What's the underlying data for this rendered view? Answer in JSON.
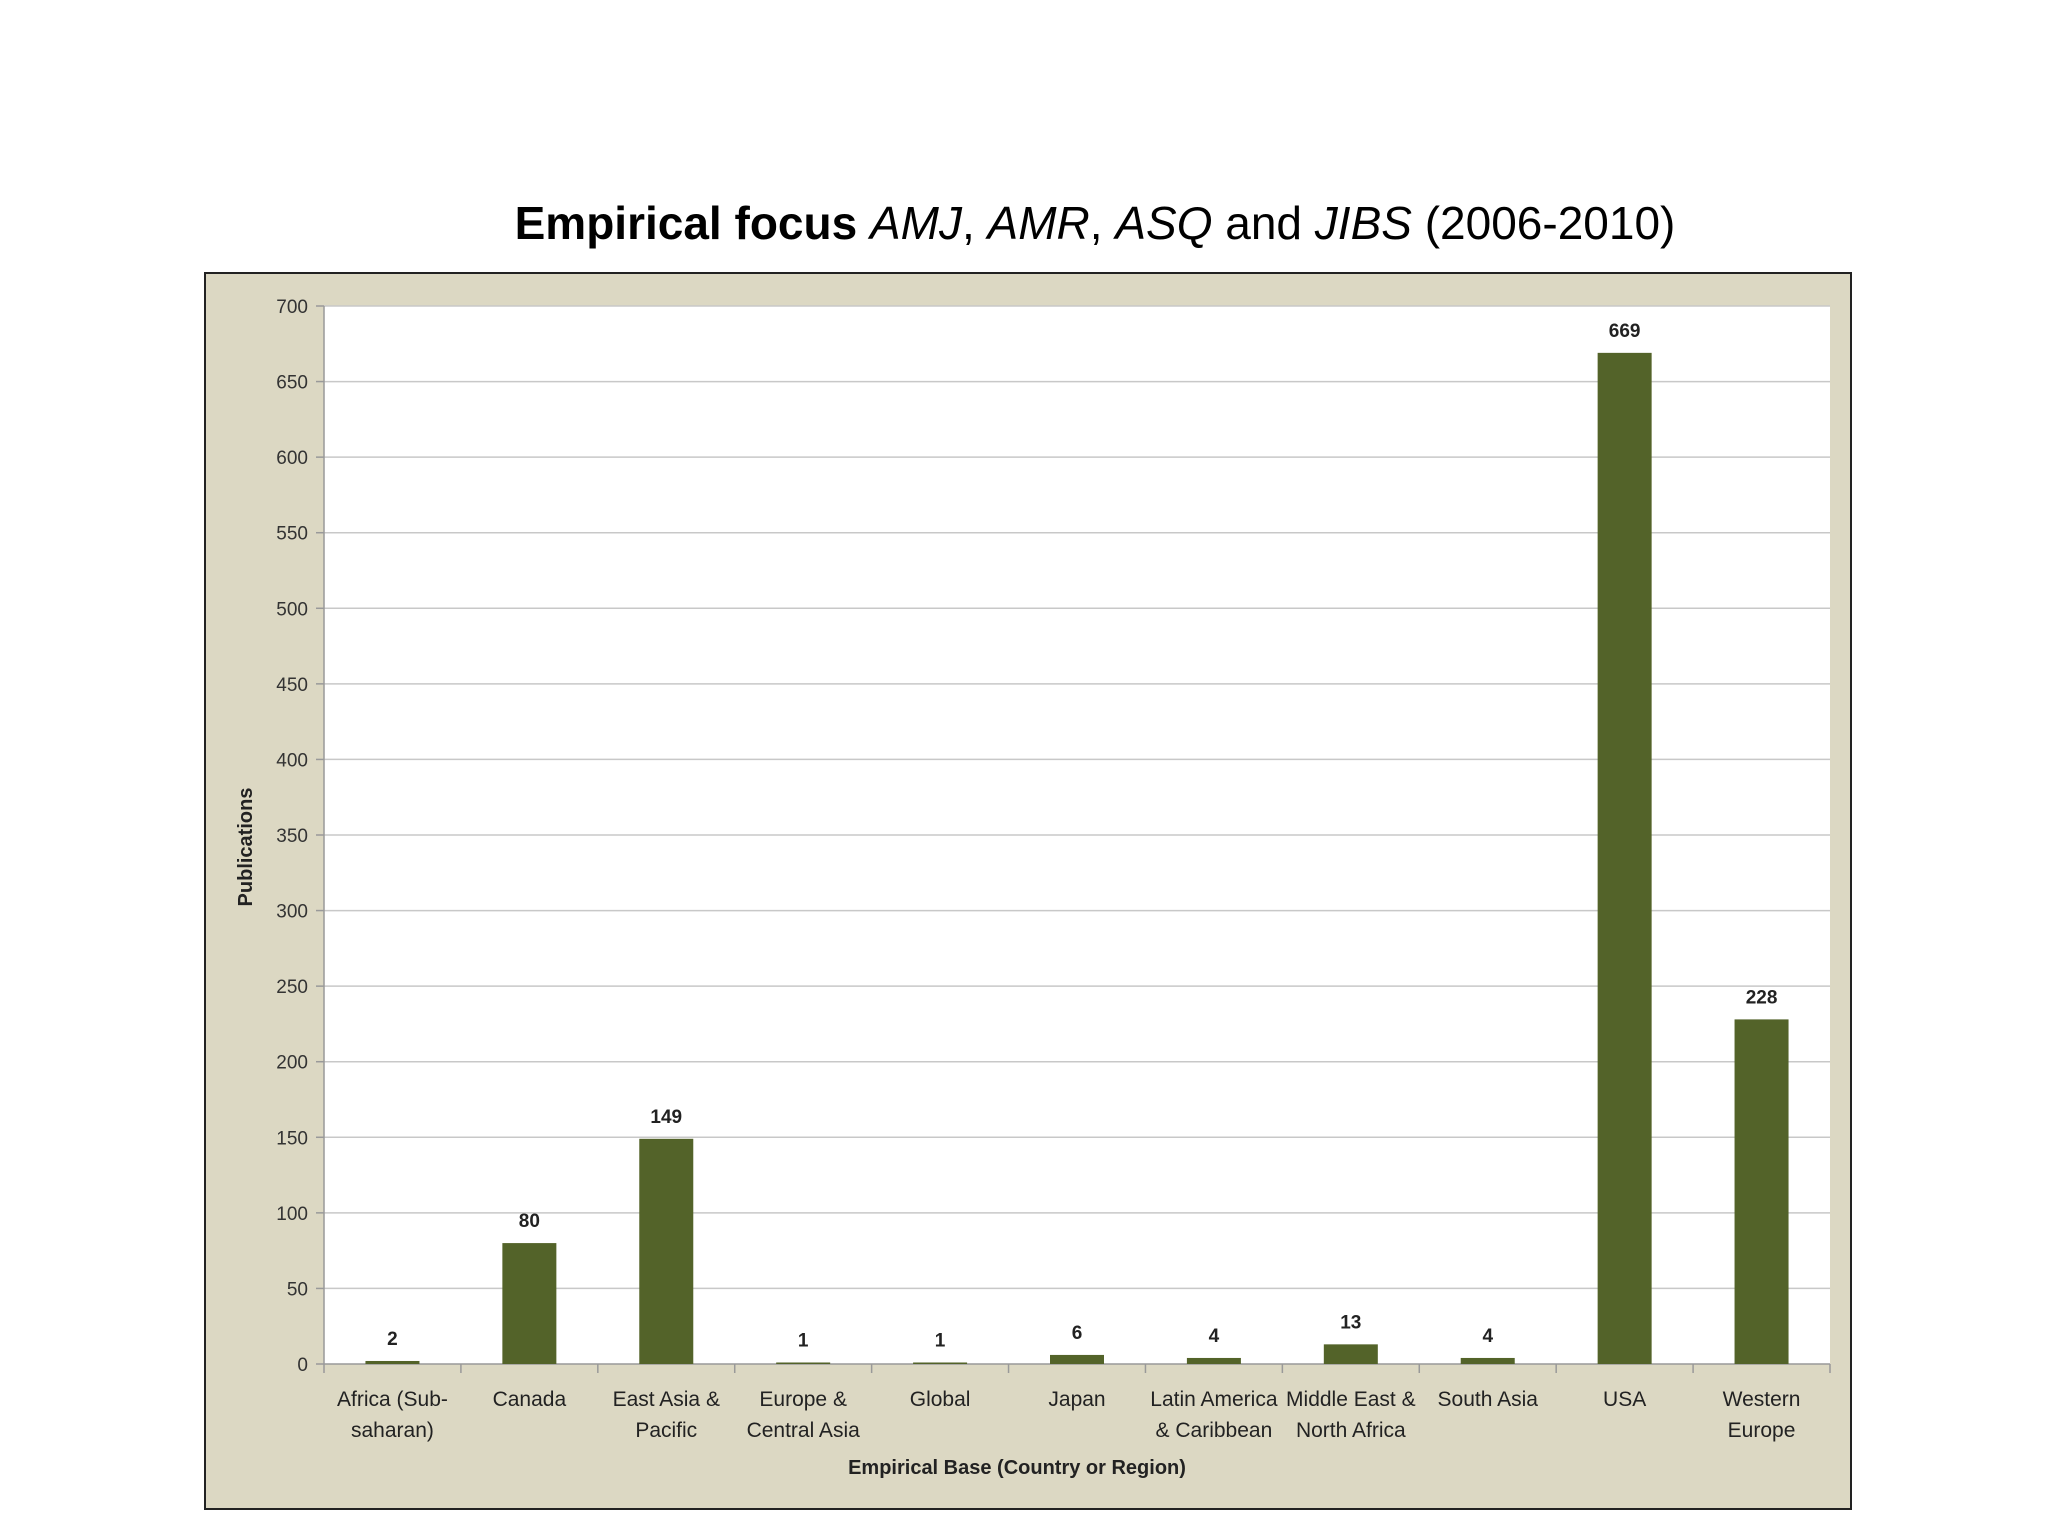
{
  "title": {
    "bold_part": "Empirical focus",
    "journal_1": "AMJ",
    "sep_1": ", ",
    "journal_2": "AMR",
    "sep_2": ", ",
    "journal_3": "ASQ",
    "conj": " and ",
    "journal_4": "JIBS",
    "years": " (2006-2010)"
  },
  "chart_data": {
    "type": "bar",
    "title": "Empirical focus AMJ, AMR, ASQ and JIBS (2006-2010)",
    "xlabel": "Empirical Base (Country or Region)",
    "ylabel": "Publications",
    "ylim": [
      0,
      700
    ],
    "yticks": [
      0,
      50,
      100,
      150,
      200,
      250,
      300,
      350,
      400,
      450,
      500,
      550,
      600,
      650,
      700
    ],
    "grid": true,
    "categories": [
      [
        "Africa (Sub-",
        "saharan)"
      ],
      [
        "Canada"
      ],
      [
        "East Asia &",
        "Pacific"
      ],
      [
        "Europe &",
        "Central Asia"
      ],
      [
        "Global"
      ],
      [
        "Japan"
      ],
      [
        "Latin America",
        "& Caribbean"
      ],
      [
        "Middle East &",
        "North Africa"
      ],
      [
        "South Asia"
      ],
      [
        "USA"
      ],
      [
        "Western",
        "Europe"
      ]
    ],
    "values": [
      2,
      80,
      149,
      1,
      1,
      6,
      4,
      13,
      4,
      669,
      228
    ],
    "bar_color": "#536329",
    "plot_background": "#ffffff",
    "frame_background": "#dcd8c3",
    "gridline_color": "#c8c8c8"
  }
}
